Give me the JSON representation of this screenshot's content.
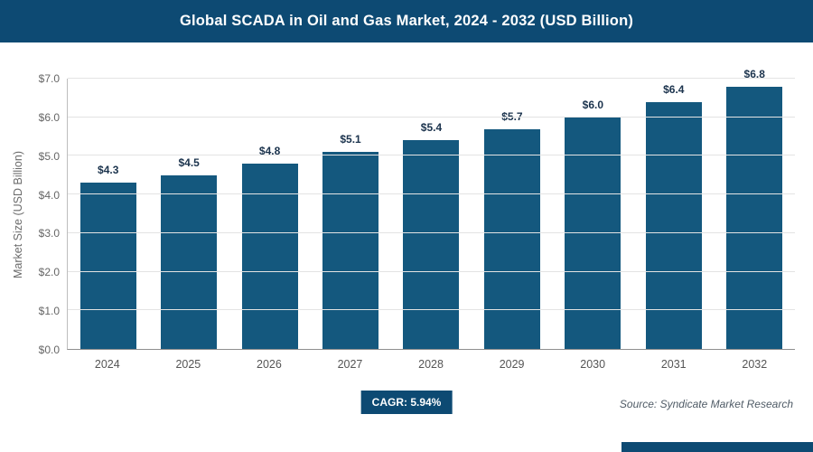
{
  "header": {
    "title": "Global SCADA in Oil and Gas Market, 2024 - 2032 (USD Billion)"
  },
  "footer": {
    "cagr_label": "CAGR: 5.94%",
    "source": "Source: Syndicate Market Research"
  },
  "colors": {
    "header_bg": "#0d4a73",
    "bar": "#14587e",
    "badge_bg": "#0d4a73",
    "accent_strip": "#0d4a73",
    "gridline": "#e3e3e3"
  },
  "chart_data": {
    "type": "bar",
    "title": "Global SCADA in Oil and Gas Market, 2024 - 2032 (USD Billion)",
    "categories": [
      "2024",
      "2025",
      "2026",
      "2027",
      "2028",
      "2029",
      "2030",
      "2031",
      "2032"
    ],
    "values": [
      4.3,
      4.5,
      4.8,
      5.1,
      5.4,
      5.7,
      6.0,
      6.4,
      6.8
    ],
    "value_labels": [
      "$4.3",
      "$4.5",
      "$4.8",
      "$5.1",
      "$5.4",
      "$5.7",
      "$6.0",
      "$6.4",
      "$6.8"
    ],
    "xlabel": "",
    "ylabel": "Market Size (USD Billion)",
    "ylim": [
      0,
      7
    ],
    "ytick_step": 1,
    "ytick_labels": [
      "$0.0",
      "$1.0",
      "$2.0",
      "$3.0",
      "$4.0",
      "$5.0",
      "$6.0",
      "$7.0"
    ],
    "grid": "horizontal",
    "legend": "none"
  }
}
